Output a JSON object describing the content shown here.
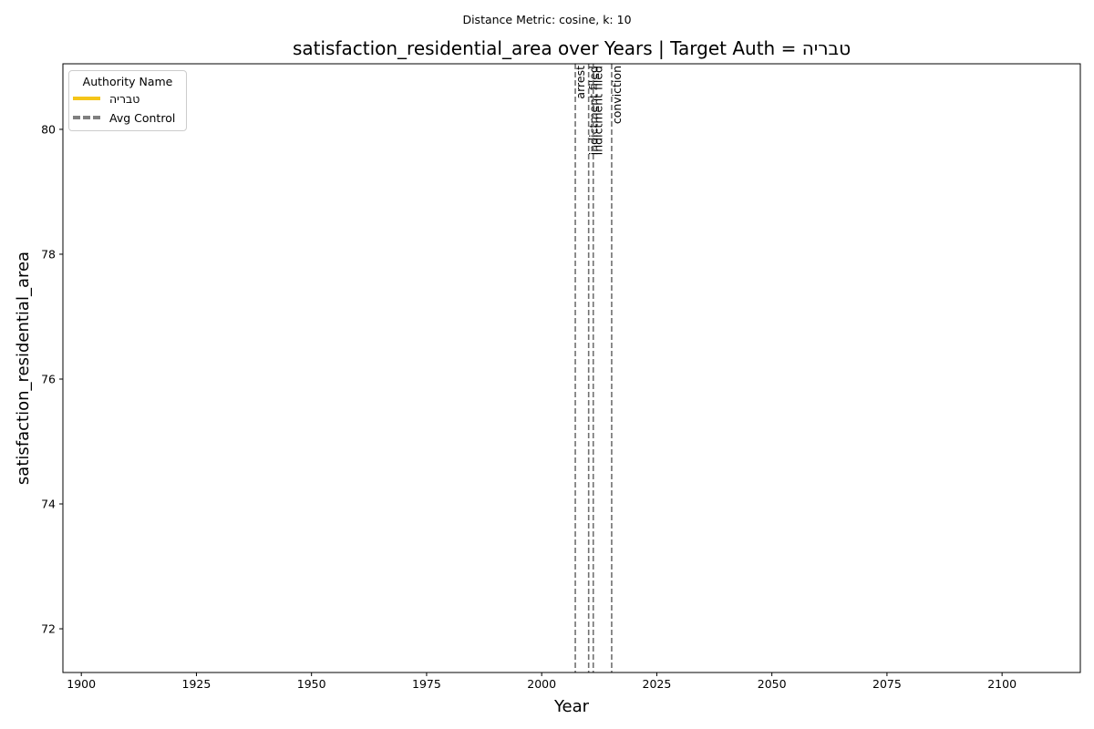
{
  "chart_data": {
    "type": "line",
    "suptitle": "Distance Metric: cosine, k: 10",
    "title": "satisfaction_residential_area over Years | Target Auth = טבריה",
    "xlabel": "Year",
    "ylabel": "satisfaction_residential_area",
    "xlim": [
      1896,
      2117
    ],
    "ylim": [
      71.3,
      81.05
    ],
    "xticks": [
      1900,
      1925,
      1950,
      1975,
      2000,
      2025,
      2050,
      2075,
      2100
    ],
    "yticks": [
      72,
      74,
      76,
      78,
      80
    ],
    "grid": false,
    "legend": {
      "title": "Authority Name",
      "placement": "top-left",
      "entries": [
        {
          "label": "טבריה",
          "color": "#f5c518",
          "style": "solid"
        },
        {
          "label": "Avg Control",
          "color": "#808080",
          "style": "dashed"
        }
      ]
    },
    "series": [],
    "events": [
      {
        "year": 2007.3,
        "label": "arrest"
      },
      {
        "year": 2010.2,
        "label": "indictment filed"
      },
      {
        "year": 2011.2,
        "label": "indictment filed"
      },
      {
        "year": 2015.2,
        "label": "conviction"
      }
    ]
  }
}
